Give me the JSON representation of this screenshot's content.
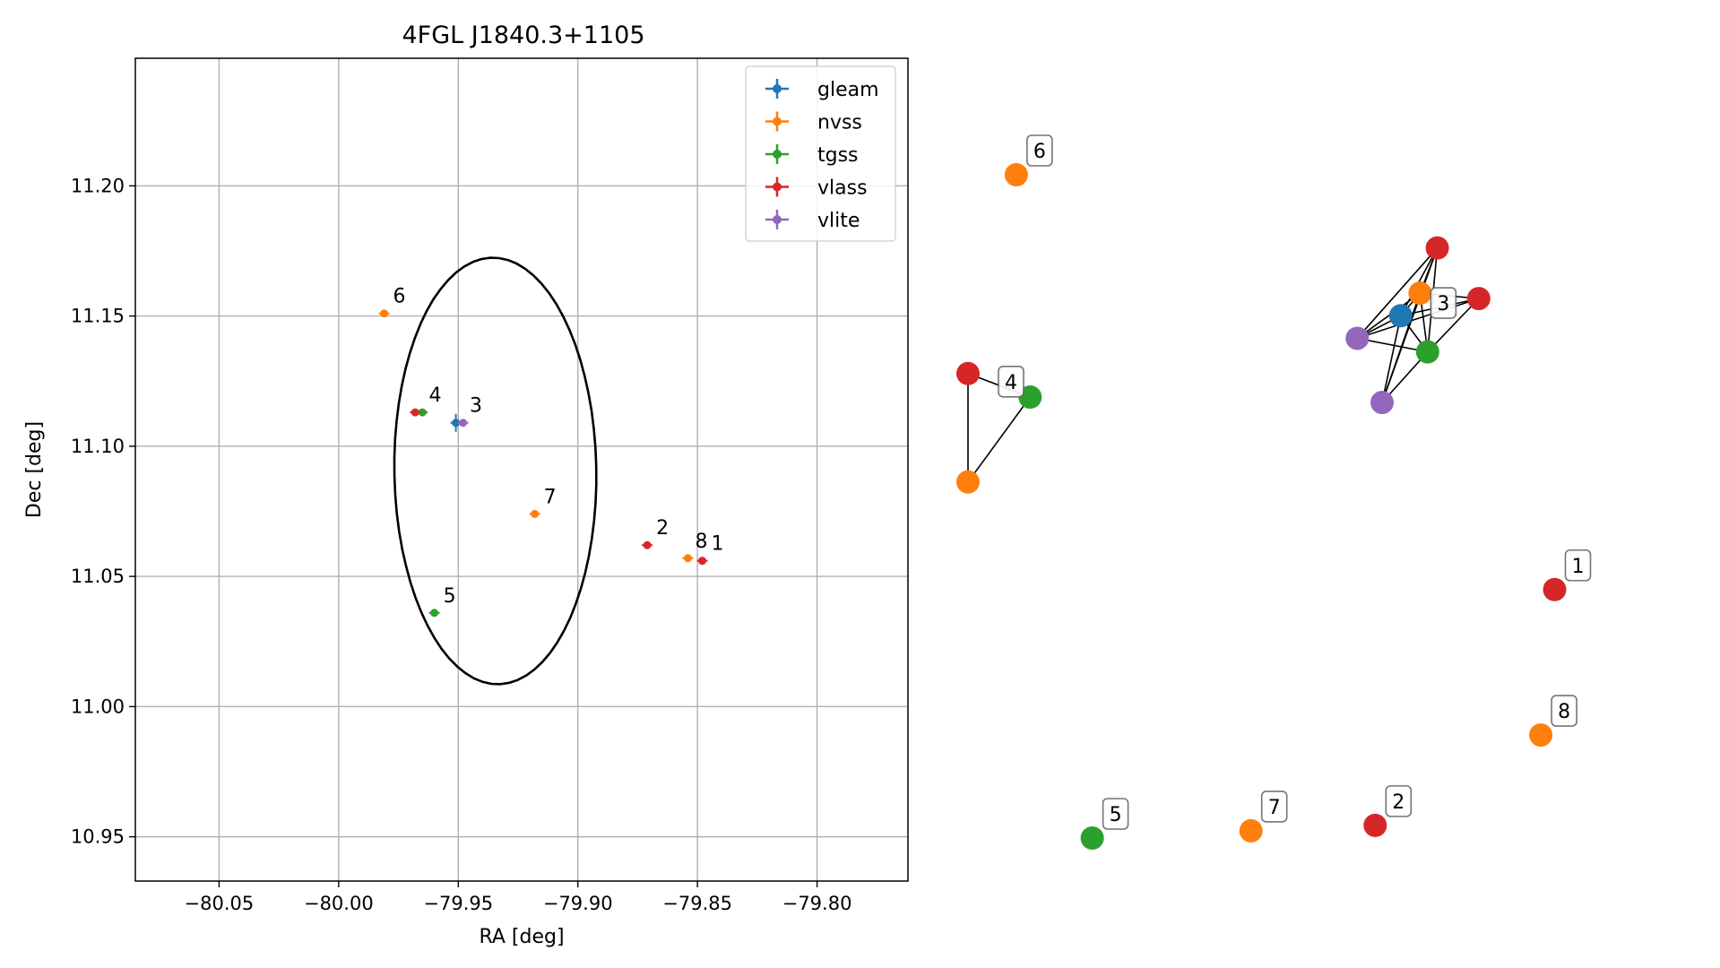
{
  "chart_data": [
    {
      "type": "scatter",
      "title": "4FGL J1840.3+1105",
      "xlabel": "RA [deg]",
      "ylabel": "Dec [deg]",
      "xlim": [
        -80.085,
        -79.762
      ],
      "ylim": [
        10.933,
        11.249
      ],
      "xticks": [
        -80.05,
        -80.0,
        -79.95,
        -79.9,
        -79.85,
        -79.8
      ],
      "xtick_labels": [
        "−80.05",
        "−80.00",
        "−79.95",
        "−79.90",
        "−79.85",
        "−79.80"
      ],
      "yticks": [
        10.95,
        11.0,
        11.05,
        11.1,
        11.15,
        11.2
      ],
      "ytick_labels": [
        "10.95",
        "11.00",
        "11.05",
        "11.10",
        "11.15",
        "11.20"
      ],
      "grid": true,
      "legend_position": "top-right",
      "colors": {
        "gleam": "#1f77b4",
        "nvss": "#ff7f0e",
        "tgss": "#2ca02c",
        "vlass": "#d62728",
        "vlite": "#9467bd"
      },
      "series": [
        {
          "name": "gleam",
          "points": [
            {
              "x": -79.951,
              "y": 11.109
            }
          ]
        },
        {
          "name": "nvss",
          "points": [
            {
              "x": -79.981,
              "y": 11.151
            },
            {
              "x": -79.918,
              "y": 11.074
            },
            {
              "x": -79.854,
              "y": 11.057
            }
          ]
        },
        {
          "name": "tgss",
          "points": [
            {
              "x": -79.965,
              "y": 11.113
            },
            {
              "x": -79.96,
              "y": 11.036
            }
          ]
        },
        {
          "name": "vlass",
          "points": [
            {
              "x": -79.968,
              "y": 11.113
            },
            {
              "x": -79.871,
              "y": 11.062
            },
            {
              "x": -79.848,
              "y": 11.056
            }
          ]
        },
        {
          "name": "vlite",
          "points": [
            {
              "x": -79.948,
              "y": 11.109
            }
          ]
        }
      ],
      "ellipse": {
        "center_x": -79.9345,
        "center_y": 11.0905,
        "semi_x": 0.0425,
        "semi_y": 0.0825,
        "rotation_deg": 7
      },
      "annotations": [
        {
          "text": "6",
          "x": -79.981,
          "y": 11.151
        },
        {
          "text": "4",
          "x": -79.966,
          "y": 11.113
        },
        {
          "text": "3",
          "x": -79.949,
          "y": 11.109
        },
        {
          "text": "7",
          "x": -79.918,
          "y": 11.074
        },
        {
          "text": "2",
          "x": -79.871,
          "y": 11.062
        },
        {
          "text": "8",
          "x": -79.854,
          "y": 11.057
        },
        {
          "text": "1",
          "x": -79.848,
          "y": 11.056
        },
        {
          "text": "5",
          "x": -79.96,
          "y": 11.036
        }
      ]
    },
    {
      "type": "scatter",
      "nodes": [
        {
          "id": "n6",
          "survey": "nvss",
          "x": 0.07,
          "y": 0.82
        },
        {
          "id": "c3_v1",
          "survey": "vlass",
          "x": 0.68,
          "y": 0.739
        },
        {
          "id": "c3_n",
          "survey": "nvss",
          "x": 0.655,
          "y": 0.689
        },
        {
          "id": "c3_v2",
          "survey": "vlass",
          "x": 0.74,
          "y": 0.683
        },
        {
          "id": "c3_g",
          "survey": "gleam",
          "x": 0.627,
          "y": 0.664
        },
        {
          "id": "c3_vl1",
          "survey": "vlite",
          "x": 0.564,
          "y": 0.639
        },
        {
          "id": "c3_t",
          "survey": "tgss",
          "x": 0.666,
          "y": 0.624
        },
        {
          "id": "c3_vl2",
          "survey": "vlite",
          "x": 0.6,
          "y": 0.568
        },
        {
          "id": "c4_v",
          "survey": "vlass",
          "x": 0.0,
          "y": 0.6
        },
        {
          "id": "c4_t",
          "survey": "tgss",
          "x": 0.09,
          "y": 0.574
        },
        {
          "id": "c4_n",
          "survey": "nvss",
          "x": 0.0,
          "y": 0.48
        },
        {
          "id": "n1",
          "survey": "vlass",
          "x": 0.85,
          "y": 0.361
        },
        {
          "id": "n8",
          "survey": "nvss",
          "x": 0.83,
          "y": 0.2
        },
        {
          "id": "n2",
          "survey": "vlass",
          "x": 0.59,
          "y": 0.1
        },
        {
          "id": "n7",
          "survey": "nvss",
          "x": 0.41,
          "y": 0.094
        },
        {
          "id": "n5",
          "survey": "tgss",
          "x": 0.18,
          "y": 0.086
        }
      ],
      "edges": [
        [
          "c3_v1",
          "c3_n"
        ],
        [
          "c3_v1",
          "c3_g"
        ],
        [
          "c3_v1",
          "c3_t"
        ],
        [
          "c3_v1",
          "c3_vl1"
        ],
        [
          "c3_v1",
          "c3_vl2"
        ],
        [
          "c3_n",
          "c3_v2"
        ],
        [
          "c3_n",
          "c3_g"
        ],
        [
          "c3_n",
          "c3_vl1"
        ],
        [
          "c3_n",
          "c3_t"
        ],
        [
          "c3_n",
          "c3_vl2"
        ],
        [
          "c3_v2",
          "c3_g"
        ],
        [
          "c3_v2",
          "c3_t"
        ],
        [
          "c3_v2",
          "c3_vl1"
        ],
        [
          "c3_g",
          "c3_vl1"
        ],
        [
          "c3_g",
          "c3_t"
        ],
        [
          "c3_g",
          "c3_vl2"
        ],
        [
          "c3_vl1",
          "c3_t"
        ],
        [
          "c3_t",
          "c3_vl2"
        ],
        [
          "c4_v",
          "c4_t"
        ],
        [
          "c4_v",
          "c4_n"
        ],
        [
          "c4_t",
          "c4_n"
        ]
      ],
      "labels": [
        {
          "text": "6",
          "node": "n6"
        },
        {
          "text": "3",
          "node": "c3_n"
        },
        {
          "text": "4",
          "node": "c4_v"
        },
        {
          "text": "1",
          "node": "n1"
        },
        {
          "text": "8",
          "node": "n8"
        },
        {
          "text": "2",
          "node": "n2"
        },
        {
          "text": "7",
          "node": "n7"
        },
        {
          "text": "5",
          "node": "n5"
        }
      ]
    }
  ]
}
